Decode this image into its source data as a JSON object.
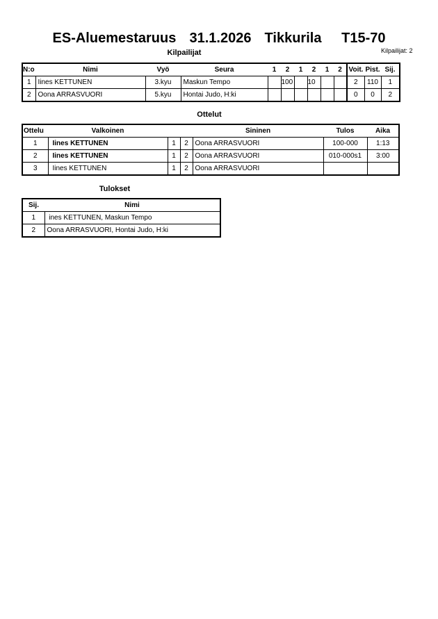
{
  "title": "ES-Aluemestaruus  31.1.2026  Tikkurila   T15-70",
  "competitors_count": "Kilpailijat: 2",
  "competitors": {
    "heading": "Kilpailijat",
    "headers": [
      "N:o",
      "Nimi",
      "Vyö",
      "Seura",
      "1",
      "2",
      "1",
      "2",
      "1",
      "2",
      "Voit.",
      "Pist.",
      "Sij."
    ],
    "rows": [
      {
        "no": "1",
        "name": "Iines KETTUNEN",
        "belt": "3.kyu",
        "club": "Maskun Tempo",
        "scores": [
          "",
          "100",
          "",
          "10",
          "",
          ""
        ],
        "wins": "2",
        "points": "110",
        "rank": "1"
      },
      {
        "no": "2",
        "name": "Oona ARRASVUORI",
        "belt": "5.kyu",
        "club": "Hontai Judo, H:ki",
        "scores": [
          "",
          "",
          "",
          "",
          "",
          ""
        ],
        "wins": "0",
        "points": "0",
        "rank": "2"
      }
    ]
  },
  "matches": {
    "heading": "Ottelut",
    "headers": [
      "Ottelu",
      "Valkoinen",
      "Sininen",
      "Tulos",
      "Aika"
    ],
    "rows": [
      {
        "no": "1",
        "white": "Iines KETTUNEN",
        "w": "1",
        "b": "2",
        "blue": "Oona ARRASVUORI",
        "result": "100-000",
        "time": "1:13",
        "white_bold": true
      },
      {
        "no": "2",
        "white": "Iines KETTUNEN",
        "w": "1",
        "b": "2",
        "blue": "Oona ARRASVUORI",
        "result": "010-000s1",
        "time": "3:00",
        "white_bold": true
      },
      {
        "no": "3",
        "white": "Iines KETTUNEN",
        "w": "1",
        "b": "2",
        "blue": "Oona ARRASVUORI",
        "result": "",
        "time": "",
        "white_bold": false
      }
    ]
  },
  "results": {
    "heading": "Tulokset",
    "headers": [
      "Sij.",
      "Nimi"
    ],
    "rows": [
      {
        "rank": "1",
        "name": " ines KETTUNEN, Maskun Tempo"
      },
      {
        "rank": "2",
        "name": "Oona ARRASVUORI, Hontai Judo, H:ki"
      }
    ]
  }
}
